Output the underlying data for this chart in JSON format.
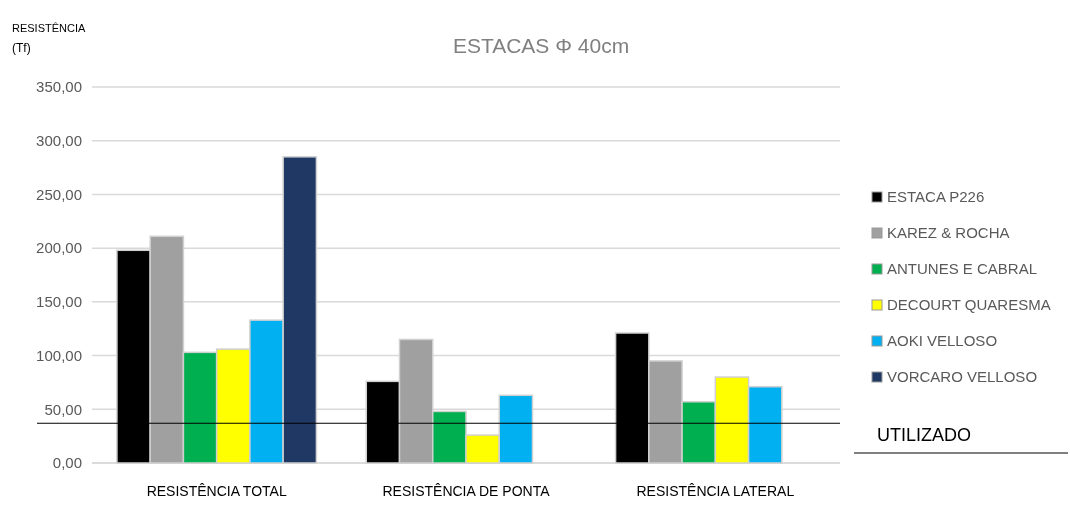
{
  "chart_data": {
    "type": "bar",
    "title": "ESTACAS Φ 40cm",
    "ylabel": "RESISTÊNCIA (Tf)",
    "categories": [
      "RESISTÊNCIA TOTAL",
      "RESISTÊNCIA DE PONTA",
      "RESISTÊNCIA LATERAL"
    ],
    "series": [
      {
        "name": "ESTACA P226",
        "color": "#000000",
        "values": [
          198,
          76,
          121
        ]
      },
      {
        "name": "KAREZ & ROCHA",
        "color": "#a0a0a0",
        "values": [
          211,
          115,
          95
        ]
      },
      {
        "name": "ANTUNES E CABRAL",
        "color": "#00b050",
        "values": [
          103,
          48,
          57
        ]
      },
      {
        "name": "DECOURT QUARESMA",
        "color": "#ffff00",
        "values": [
          106,
          26,
          80
        ]
      },
      {
        "name": "AOKI VELLOSO",
        "color": "#00b0f0",
        "values": [
          133,
          63,
          71
        ]
      },
      {
        "name": "VORCARO VELLOSO",
        "color": "#1f3864",
        "values": [
          285,
          null,
          null
        ]
      }
    ],
    "ylim": [
      0,
      350
    ],
    "yticks": [
      {
        "value": 0,
        "label": "0,00"
      },
      {
        "value": 50,
        "label": "50,00"
      },
      {
        "value": 100,
        "label": "100,00"
      },
      {
        "value": 150,
        "label": "150,00"
      },
      {
        "value": 200,
        "label": "200,00"
      },
      {
        "value": 250,
        "label": "250,00"
      },
      {
        "value": 300,
        "label": "300,00"
      },
      {
        "value": 350,
        "label": "350,00"
      }
    ],
    "grid": "y",
    "legend": "right",
    "ref_lines": [
      {
        "axis": "y",
        "value": 37,
        "label": "UTILIZADO",
        "color": "#000000"
      }
    ]
  }
}
